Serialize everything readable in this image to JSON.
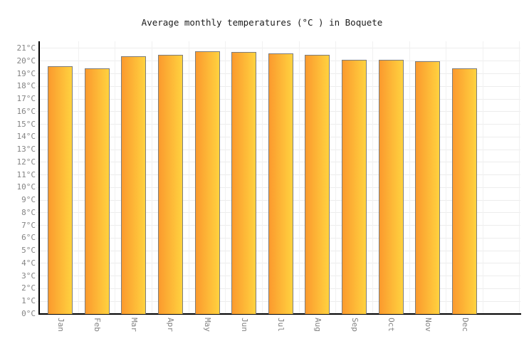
{
  "colors": {
    "background": "#ffffff",
    "axis": "#000000",
    "gridline": "#ededed",
    "tick_label": "#848484",
    "title_text": "#1c1c1c",
    "bar_gradient_left": "#FB9A2E",
    "bar_gradient_right": "#FFD23F",
    "bar_border": "#7d7d7d"
  },
  "chart_data": {
    "type": "bar",
    "title": "Average monthly temperatures (°C ) in Boquete",
    "categories": [
      "Jan",
      "Feb",
      "Mar",
      "Apr",
      "May",
      "Jun",
      "Jul",
      "Aug",
      "Sep",
      "Oct",
      "Nov",
      "Dec"
    ],
    "values": [
      19.6,
      19.4,
      20.4,
      20.5,
      20.8,
      20.7,
      20.6,
      20.5,
      20.1,
      20.1,
      20.0,
      19.4
    ],
    "unit": "°C",
    "xlabel": "",
    "ylabel": "°C",
    "ylim": [
      0,
      21
    ],
    "ytick_step": 1,
    "ytick_labels": [
      "0°C",
      "1°C",
      "2°C",
      "3°C",
      "4°C",
      "5°C",
      "6°C",
      "7°C",
      "8°C",
      "9°C",
      "10°C",
      "11°C",
      "12°C",
      "13°C",
      "14°C",
      "15°C",
      "16°C",
      "17°C",
      "18°C",
      "19°C",
      "20°C",
      "21°C"
    ],
    "grid": true,
    "legend": false,
    "x_labels_rotated_90deg": true,
    "bar_color_gradient": [
      "#FB9A2E",
      "#FFD23F"
    ],
    "bar_border_color": "#7d7d7d"
  }
}
